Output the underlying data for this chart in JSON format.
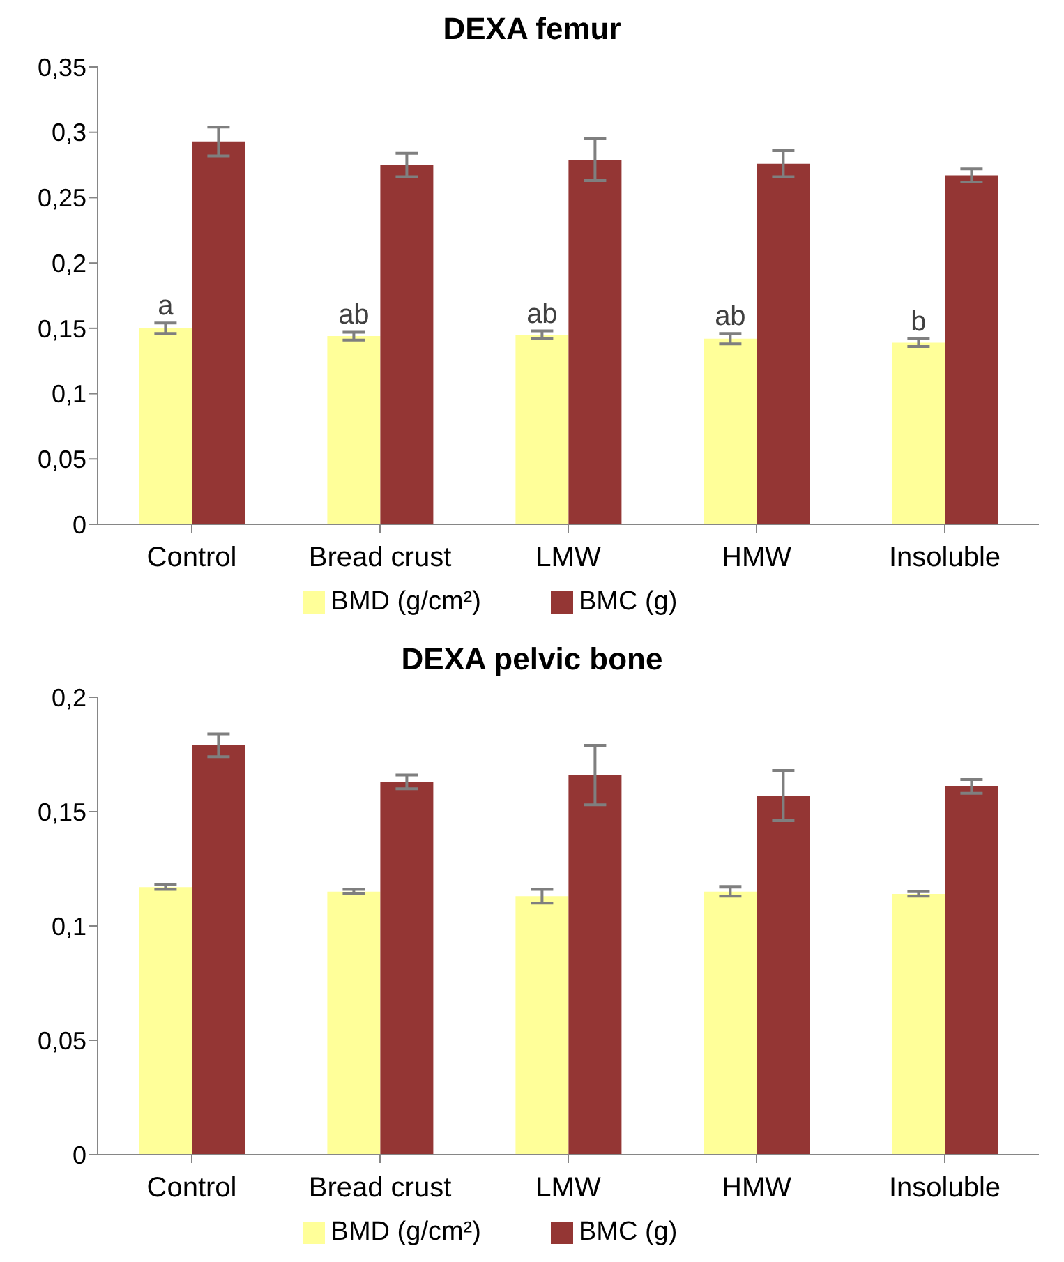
{
  "chart_data": [
    {
      "type": "bar",
      "title": "DEXA femur",
      "categories": [
        "Control",
        "Bread crust",
        "LMW",
        "HMW",
        "Insoluble"
      ],
      "series": [
        {
          "name": "BMD (g/cm²)",
          "color": "#ffff99",
          "values": [
            0.15,
            0.144,
            0.145,
            0.142,
            0.139
          ],
          "errors": [
            0.004,
            0.003,
            0.003,
            0.004,
            0.003
          ]
        },
        {
          "name": "BMC (g)",
          "color": "#943634",
          "values": [
            0.293,
            0.275,
            0.279,
            0.276,
            0.267
          ],
          "errors": [
            0.011,
            0.009,
            0.016,
            0.01,
            0.005
          ]
        }
      ],
      "ylim": [
        0,
        0.35
      ],
      "yticks": [
        0,
        {
          "value": 0.05,
          "label": "0,05"
        },
        {
          "value": 0.1,
          "label": "0,1"
        },
        {
          "value": 0.15,
          "label": "0,15"
        },
        {
          "value": 0.2,
          "label": "0,2"
        },
        {
          "value": 0.25,
          "label": "0,25"
        },
        {
          "value": 0.3,
          "label": "0,3"
        },
        {
          "value": 0.35,
          "label": "0,35"
        }
      ],
      "annotations": [
        {
          "text": "a",
          "x": "Control",
          "y": 0.15
        },
        {
          "text": "ab",
          "x": "Bread crust",
          "y": 0.144
        },
        {
          "text": "ab",
          "x": "LMW",
          "y": 0.145
        },
        {
          "text": "ab",
          "x": "HMW",
          "y": 0.142
        },
        {
          "text": "b",
          "x": "Insoluble",
          "y": 0.139
        }
      ],
      "grid": false,
      "legend": "bottom"
    },
    {
      "type": "bar",
      "title": "DEXA pelvic bone",
      "categories": [
        "Control",
        "Bread crust",
        "LMW",
        "HMW",
        "Insoluble"
      ],
      "series": [
        {
          "name": "BMD (g/cm²)",
          "color": "#ffff99",
          "values": [
            0.117,
            0.115,
            0.113,
            0.115,
            0.114
          ],
          "errors": [
            0.001,
            0.001,
            0.003,
            0.002,
            0.001
          ]
        },
        {
          "name": "BMC (g)",
          "color": "#943634",
          "values": [
            0.179,
            0.163,
            0.166,
            0.157,
            0.161
          ],
          "errors": [
            0.005,
            0.003,
            0.013,
            0.011,
            0.003
          ]
        }
      ],
      "ylim": [
        0,
        0.2
      ],
      "yticks": [
        0,
        {
          "value": 0.05,
          "label": "0,05"
        },
        {
          "value": 0.1,
          "label": "0,1"
        },
        {
          "value": 0.15,
          "label": "0,15"
        },
        {
          "value": 0.2,
          "label": "0,2"
        }
      ],
      "grid": false,
      "legend": "bottom"
    }
  ]
}
